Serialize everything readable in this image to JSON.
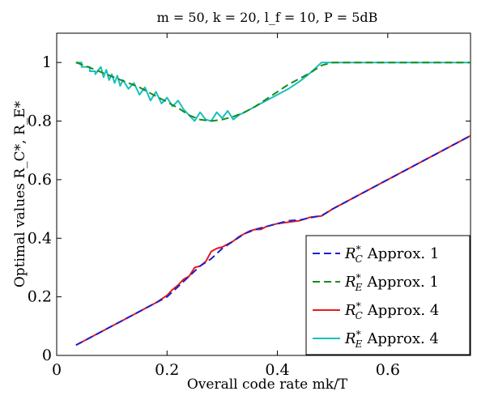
{
  "chart_data": {
    "type": "line",
    "title": "m = 50, k = 20, l_f = 10, P = 5dB",
    "xlabel": "Overall code rate mk/T",
    "ylabel": "Optimal values R_C*, R_E*",
    "xlim": [
      0,
      0.75
    ],
    "ylim": [
      0,
      1.1
    ],
    "xticks": [
      0,
      0.2,
      0.4,
      0.6
    ],
    "xtick_labels": [
      "0",
      "0.2",
      "0.4",
      "0.6"
    ],
    "yticks": [
      0,
      0.2,
      0.4,
      0.6,
      0.8,
      1
    ],
    "ytick_labels": [
      "0",
      "0.2",
      "0.4",
      "0.6",
      "0.8",
      "1"
    ],
    "grid": false,
    "legend_position": "bottom-right",
    "series": [
      {
        "name": "R_C* Approx. 1",
        "legend_main": "R",
        "legend_sub": "C",
        "legend_sup": "*",
        "legend_text": "Approx. 1",
        "color": "#1f1fcc",
        "dash": "dashed",
        "x": [
          0.035,
          0.06,
          0.09,
          0.12,
          0.15,
          0.18,
          0.2,
          0.22,
          0.24,
          0.26,
          0.28,
          0.3,
          0.32,
          0.34,
          0.36,
          0.38,
          0.4,
          0.42,
          0.44,
          0.46,
          0.48,
          0.5,
          0.55,
          0.6,
          0.65,
          0.7,
          0.75
        ],
        "y": [
          0.035,
          0.06,
          0.09,
          0.12,
          0.15,
          0.18,
          0.2,
          0.235,
          0.27,
          0.305,
          0.33,
          0.365,
          0.39,
          0.415,
          0.43,
          0.44,
          0.45,
          0.46,
          0.462,
          0.47,
          0.477,
          0.5,
          0.55,
          0.6,
          0.65,
          0.7,
          0.75
        ]
      },
      {
        "name": "R_E* Approx. 1",
        "legend_main": "R",
        "legend_sub": "E",
        "legend_sup": "*",
        "legend_text": "Approx. 1",
        "color": "#1b8a1b",
        "dash": "dashed",
        "x": [
          0.035,
          0.05,
          0.07,
          0.09,
          0.11,
          0.13,
          0.15,
          0.17,
          0.19,
          0.2,
          0.22,
          0.24,
          0.26,
          0.28,
          0.3,
          0.32,
          0.34,
          0.36,
          0.38,
          0.4,
          0.42,
          0.44,
          0.46,
          0.48,
          0.5,
          0.75
        ],
        "y": [
          1.0,
          0.99,
          0.975,
          0.96,
          0.945,
          0.93,
          0.915,
          0.895,
          0.875,
          0.865,
          0.845,
          0.82,
          0.805,
          0.8,
          0.805,
          0.815,
          0.83,
          0.85,
          0.875,
          0.9,
          0.925,
          0.945,
          0.965,
          0.99,
          1.0,
          1.0
        ]
      },
      {
        "name": "R_C* Approx. 4",
        "legend_main": "R",
        "legend_sub": "C",
        "legend_sup": "*",
        "legend_text": "Approx. 4",
        "color": "#e8191c",
        "dash": "solid",
        "x": [
          0.035,
          0.06,
          0.09,
          0.12,
          0.15,
          0.18,
          0.2,
          0.21,
          0.22,
          0.23,
          0.24,
          0.25,
          0.26,
          0.27,
          0.28,
          0.29,
          0.3,
          0.31,
          0.32,
          0.33,
          0.34,
          0.35,
          0.36,
          0.37,
          0.38,
          0.4,
          0.42,
          0.44,
          0.46,
          0.48,
          0.5,
          0.55,
          0.6,
          0.65,
          0.7,
          0.75
        ],
        "y": [
          0.035,
          0.06,
          0.09,
          0.12,
          0.15,
          0.18,
          0.205,
          0.225,
          0.24,
          0.26,
          0.27,
          0.3,
          0.305,
          0.32,
          0.355,
          0.365,
          0.37,
          0.38,
          0.39,
          0.405,
          0.415,
          0.425,
          0.43,
          0.43,
          0.44,
          0.45,
          0.455,
          0.46,
          0.472,
          0.476,
          0.5,
          0.55,
          0.6,
          0.65,
          0.7,
          0.75
        ]
      },
      {
        "name": "R_E* Approx. 4",
        "legend_main": "R",
        "legend_sub": "E",
        "legend_sup": "*",
        "legend_text": "Approx. 4",
        "color": "#17bfbf",
        "dash": "solid",
        "x": [
          0.035,
          0.045,
          0.045,
          0.06,
          0.06,
          0.07,
          0.07,
          0.08,
          0.085,
          0.09,
          0.095,
          0.1,
          0.105,
          0.11,
          0.115,
          0.12,
          0.13,
          0.14,
          0.15,
          0.16,
          0.17,
          0.18,
          0.19,
          0.2,
          0.21,
          0.22,
          0.23,
          0.24,
          0.25,
          0.26,
          0.27,
          0.28,
          0.29,
          0.3,
          0.31,
          0.32,
          0.33,
          0.34,
          0.36,
          0.38,
          0.4,
          0.42,
          0.44,
          0.46,
          0.48,
          0.5,
          0.6,
          0.75
        ],
        "y": [
          1.0,
          1.0,
          0.985,
          0.985,
          0.97,
          0.97,
          0.96,
          0.985,
          0.95,
          0.975,
          0.94,
          0.96,
          0.93,
          0.955,
          0.92,
          0.94,
          0.91,
          0.93,
          0.89,
          0.915,
          0.87,
          0.9,
          0.86,
          0.88,
          0.85,
          0.87,
          0.84,
          0.82,
          0.8,
          0.83,
          0.805,
          0.8,
          0.83,
          0.81,
          0.835,
          0.805,
          0.82,
          0.83,
          0.85,
          0.87,
          0.89,
          0.91,
          0.935,
          0.965,
          1.0,
          1.0,
          1.0,
          1.0
        ]
      }
    ]
  }
}
